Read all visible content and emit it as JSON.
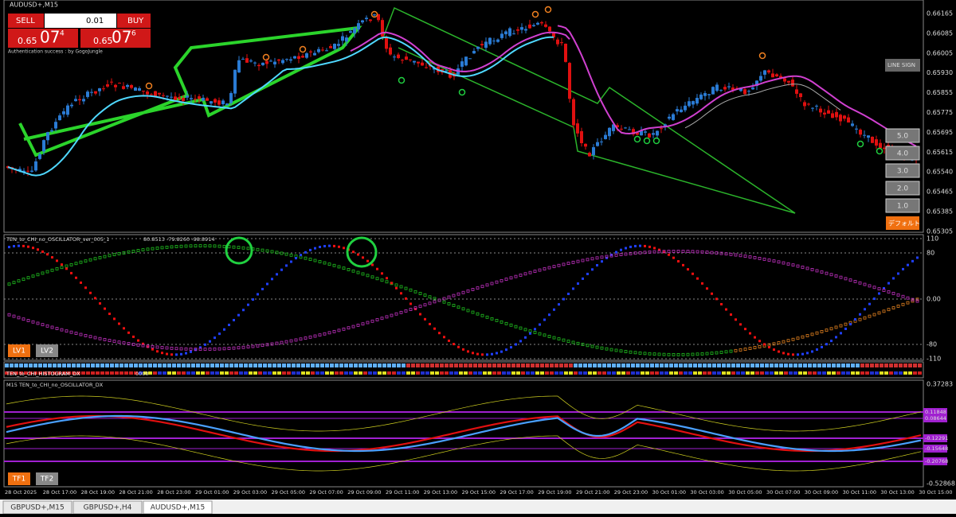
{
  "header": {
    "symbol": "AUDUSD+,M15"
  },
  "trade_panel": {
    "sell": "SELL",
    "buy": "BUY",
    "lot": "0.01",
    "bid_prefix": "0.65",
    "bid_big": "07",
    "bid_small": "4",
    "ask_prefix": "0.65",
    "ask_big": "07",
    "ask_small": "6",
    "status": "Authentication success : by GogoJungle"
  },
  "side_buttons": {
    "line_sign": "LINE SIGN",
    "levels": [
      "5.0",
      "4.0",
      "3.0",
      "2.0",
      "1.0"
    ],
    "default": "デフォルト"
  },
  "price_axis": [
    "0.66165",
    "0.66085",
    "0.66005",
    "0.65930",
    "0.65855",
    "0.65775",
    "0.65695",
    "0.65615",
    "0.65540",
    "0.65465",
    "0.65385",
    "0.65305"
  ],
  "oscillator": {
    "title": "TEN_to_CHI_no_OSCILLATOR_ver_005_1",
    "readout": "80.8513 -79.8260 -98.8914",
    "axis": [
      "110",
      "80",
      "0.00",
      "-80",
      "-110"
    ],
    "buttons": [
      "LV1",
      "LV2"
    ]
  },
  "histogram": {
    "title": "TEN_to_CHI_HISTOGRAM_DX",
    "readout": "0000"
  },
  "oscillator_dx": {
    "title": "M15 TEN_to_CHI_no_OSCILLATOR_DX",
    "axis_top": "0.37283",
    "axis_bottom": "-0.52868",
    "levels": [
      "0.11848",
      "0.08644",
      "-0.12291",
      "-0.15648",
      "-0.20768"
    ],
    "buttons": [
      "TF1",
      "TF2"
    ]
  },
  "time_axis": [
    "28 Oct 2025",
    "28 Oct 17:00",
    "28 Oct 19:00",
    "28 Oct 21:00",
    "28 Oct 23:00",
    "29 Oct 01:00",
    "29 Oct 03:00",
    "29 Oct 05:00",
    "29 Oct 07:00",
    "29 Oct 09:00",
    "29 Oct 11:00",
    "29 Oct 13:00",
    "29 Oct 15:00",
    "29 Oct 17:00",
    "29 Oct 19:00",
    "29 Oct 21:00",
    "29 Oct 23:00",
    "30 Oct 01:00",
    "30 Oct 03:00",
    "30 Oct 05:00",
    "30 Oct 07:00",
    "30 Oct 09:00",
    "30 Oct 11:00",
    "30 Oct 13:00",
    "30 Oct 15:00"
  ],
  "tabs": [
    "GBPUSD+,M15",
    "GBPUSD+,H4",
    "AUDUSD+,M15"
  ]
}
